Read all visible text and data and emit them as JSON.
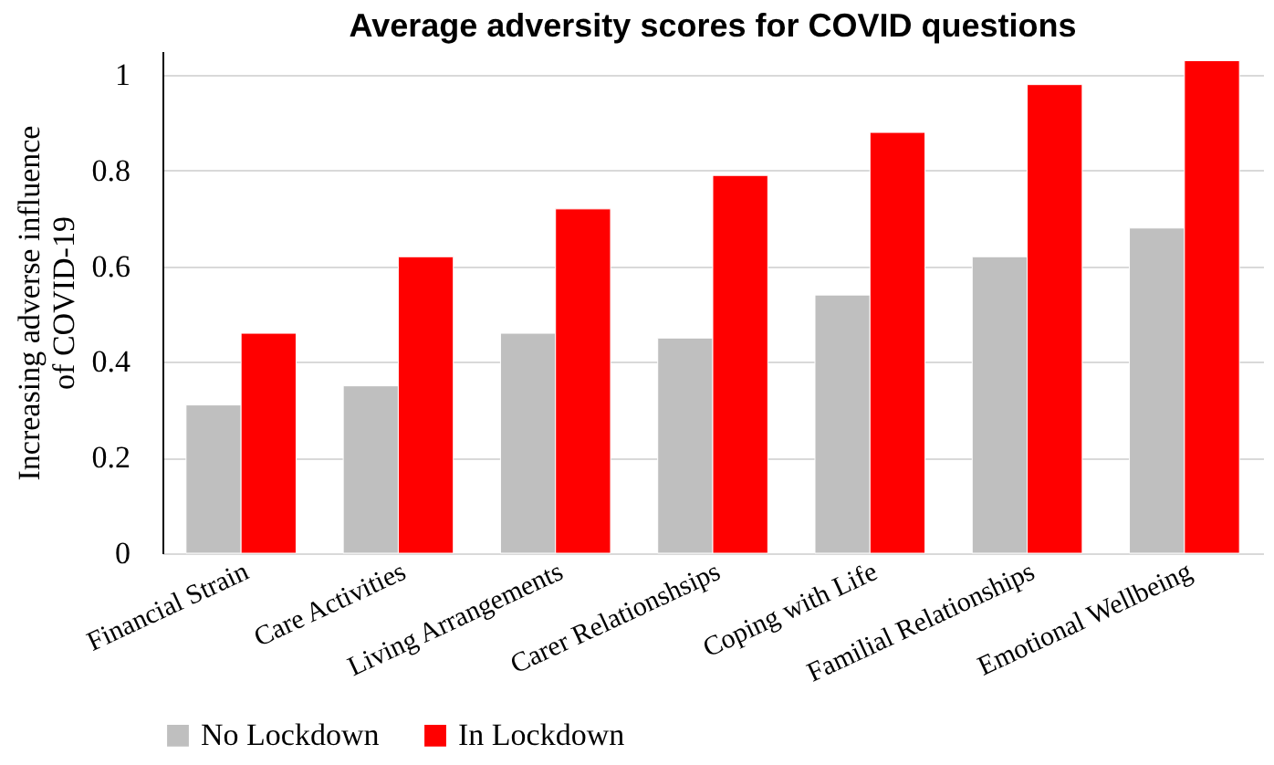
{
  "chart_data": {
    "type": "bar",
    "title": "Average adversity scores for COVID questions",
    "ylabel": "Increasing adverse influence of COVID-19",
    "categories": [
      "Financial Strain",
      "Care Activities",
      "Living Arrangements",
      "Carer Relationshsips",
      "Coping with Life",
      "Familial Relationships",
      "Emotional Wellbeing"
    ],
    "series": [
      {
        "name": "No Lockdown",
        "color": "#bfbfbf",
        "values": [
          0.31,
          0.35,
          0.46,
          0.45,
          0.54,
          0.62,
          0.68
        ]
      },
      {
        "name": "In Lockdown",
        "color": "#ff0000",
        "values": [
          0.46,
          0.62,
          0.72,
          0.79,
          0.88,
          0.98,
          1.03
        ]
      }
    ],
    "ylim": [
      0,
      1.05
    ],
    "yticks": [
      0,
      0.2,
      0.4,
      0.6,
      0.8,
      1
    ],
    "grid": "y",
    "legend": "bottom"
  }
}
